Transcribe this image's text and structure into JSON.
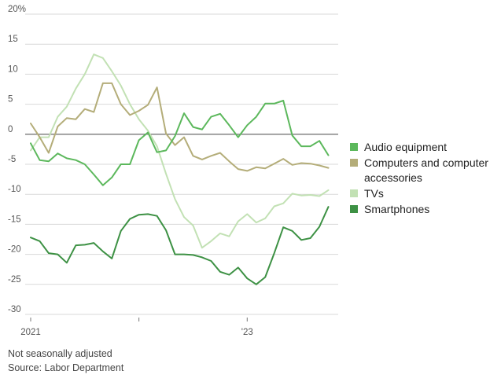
{
  "chart_data": {
    "type": "line",
    "ylim": [
      -30,
      20
    ],
    "yticks": [
      {
        "value": 20,
        "label": "20%"
      },
      {
        "value": 15,
        "label": "15"
      },
      {
        "value": 10,
        "label": "10"
      },
      {
        "value": 5,
        "label": "5"
      },
      {
        "value": 0,
        "label": "0"
      },
      {
        "value": -5,
        "label": "-5"
      },
      {
        "value": -10,
        "label": "-10"
      },
      {
        "value": -15,
        "label": "-15"
      },
      {
        "value": -20,
        "label": "-20"
      },
      {
        "value": -25,
        "label": "-25"
      },
      {
        "value": -30,
        "label": "-30"
      }
    ],
    "x": [
      "2021-01",
      "2021-02",
      "2021-03",
      "2021-04",
      "2021-05",
      "2021-06",
      "2021-07",
      "2021-08",
      "2021-09",
      "2021-10",
      "2021-11",
      "2021-12",
      "2022-01",
      "2022-02",
      "2022-03",
      "2022-04",
      "2022-05",
      "2022-06",
      "2022-07",
      "2022-08",
      "2022-09",
      "2022-10",
      "2022-11",
      "2022-12",
      "2023-01",
      "2023-02",
      "2023-03",
      "2023-04",
      "2023-05",
      "2023-06",
      "2023-07",
      "2023-08",
      "2023-09",
      "2023-10",
      "2023-11"
    ],
    "xticks": [
      {
        "x": "2021-01",
        "label": "2021"
      },
      {
        "x": "2022-01",
        "label": ""
      },
      {
        "x": "2023-01",
        "label": "'23"
      }
    ],
    "grid": true,
    "legend_position": "right",
    "series": [
      {
        "name": "Audio equipment",
        "color": "#5cb85c",
        "values": [
          -1.5,
          -4.3,
          -4.5,
          -3.2,
          -4.0,
          -4.3,
          -5.0,
          -6.7,
          -8.5,
          -7.2,
          -5.0,
          -5.0,
          -1.0,
          0.3,
          -3.0,
          -2.7,
          -0.3,
          3.5,
          1.2,
          0.8,
          2.9,
          3.4,
          1.5,
          -0.5,
          1.5,
          2.9,
          5.1,
          5.1,
          5.6,
          -0.2,
          -2.0,
          -2.0,
          -1.1,
          -3.5,
          null
        ]
      },
      {
        "name": "Computers and computer accessories",
        "color": "#b4ad79",
        "values": [
          1.8,
          -0.5,
          -3.1,
          1.3,
          2.7,
          2.5,
          4.2,
          3.7,
          8.5,
          8.5,
          5.0,
          3.2,
          3.9,
          4.9,
          7.8,
          0.1,
          -1.8,
          -0.5,
          -3.6,
          -4.2,
          -3.6,
          -3.1,
          -4.5,
          -5.8,
          -6.1,
          -5.5,
          -5.7,
          -4.9,
          -4.1,
          -5.1,
          -4.8,
          -4.9,
          -5.2,
          -5.6,
          null
        ]
      },
      {
        "name": "TVs",
        "color": "#c2e1b4",
        "values": [
          -2.7,
          -0.5,
          -0.5,
          2.9,
          4.6,
          7.6,
          10.0,
          13.3,
          12.7,
          10.5,
          8.1,
          5.0,
          2.5,
          0.6,
          -2.0,
          -6.6,
          -10.8,
          -13.8,
          -15.2,
          -18.9,
          -17.8,
          -16.5,
          -17.0,
          -14.5,
          -13.3,
          -14.7,
          -14.0,
          -12.0,
          -11.5,
          -9.9,
          -10.2,
          -10.1,
          -10.3,
          -9.3,
          null
        ]
      },
      {
        "name": "Smartphones",
        "color": "#3d9144",
        "values": [
          -17.2,
          -17.8,
          -19.8,
          -20.0,
          -21.4,
          -18.5,
          -18.4,
          -18.1,
          -19.5,
          -20.7,
          -16.1,
          -14.1,
          -13.4,
          -13.3,
          -13.6,
          -16.0,
          -20.0,
          -20.0,
          -20.1,
          -20.5,
          -21.1,
          -22.9,
          -23.4,
          -22.2,
          -24.0,
          -25.0,
          -23.8,
          -19.8,
          -15.5,
          -16.1,
          -17.6,
          -17.3,
          -15.4,
          -12.1,
          null
        ]
      }
    ],
    "notes": [
      "Not seasonally adjusted",
      "Source: Labor Department"
    ]
  }
}
